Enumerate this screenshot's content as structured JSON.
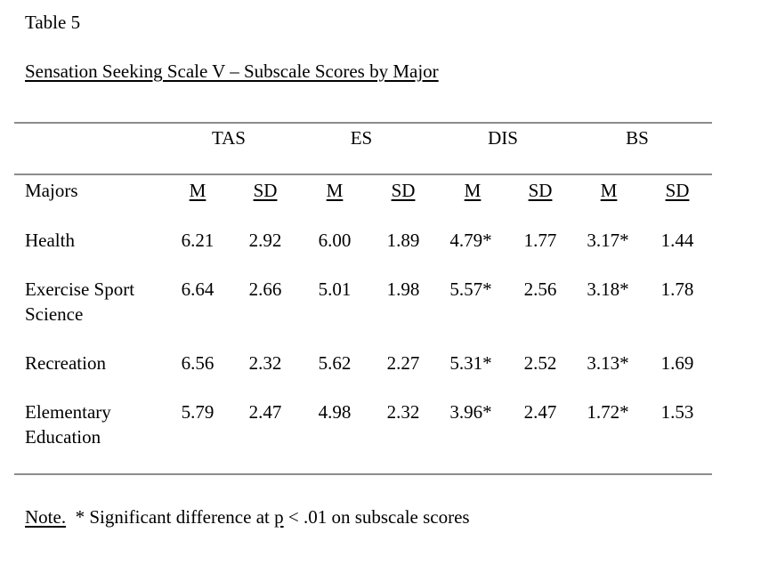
{
  "table_label": "Table 5",
  "table_title": "Sensation Seeking Scale V – Subscale Scores by Major",
  "groups": [
    "TAS",
    "ES",
    "DIS",
    "BS"
  ],
  "row_header": "Majors",
  "stat_headers": [
    "M",
    "SD",
    "M",
    "SD",
    "M",
    "SD",
    "M",
    "SD"
  ],
  "rows": [
    {
      "label_line1": "Health",
      "label_line2": "",
      "values": [
        "6.21",
        "2.92",
        "6.00",
        "1.89",
        "4.79*",
        "1.77",
        "3.17*",
        "1.44"
      ]
    },
    {
      "label_line1": "Exercise Sport",
      "label_line2": "Science",
      "values": [
        "6.64",
        "2.66",
        "5.01",
        "1.98",
        "5.57*",
        "2.56",
        "3.18*",
        "1.78"
      ]
    },
    {
      "label_line1": "Recreation",
      "label_line2": "",
      "values": [
        "6.56",
        "2.32",
        "5.62",
        "2.27",
        "5.31*",
        "2.52",
        "3.13*",
        "1.69"
      ]
    },
    {
      "label_line1": "Elementary",
      "label_line2": "Education",
      "values": [
        "5.79",
        "2.47",
        "4.98",
        "2.32",
        "3.96*",
        "2.47",
        "1.72*",
        "1.53"
      ]
    }
  ],
  "note": {
    "label": "Note.",
    "text_before_p": "  * Significant difference at ",
    "p_symbol": "p",
    "text_after_p": " < .01 on subscale scores"
  }
}
